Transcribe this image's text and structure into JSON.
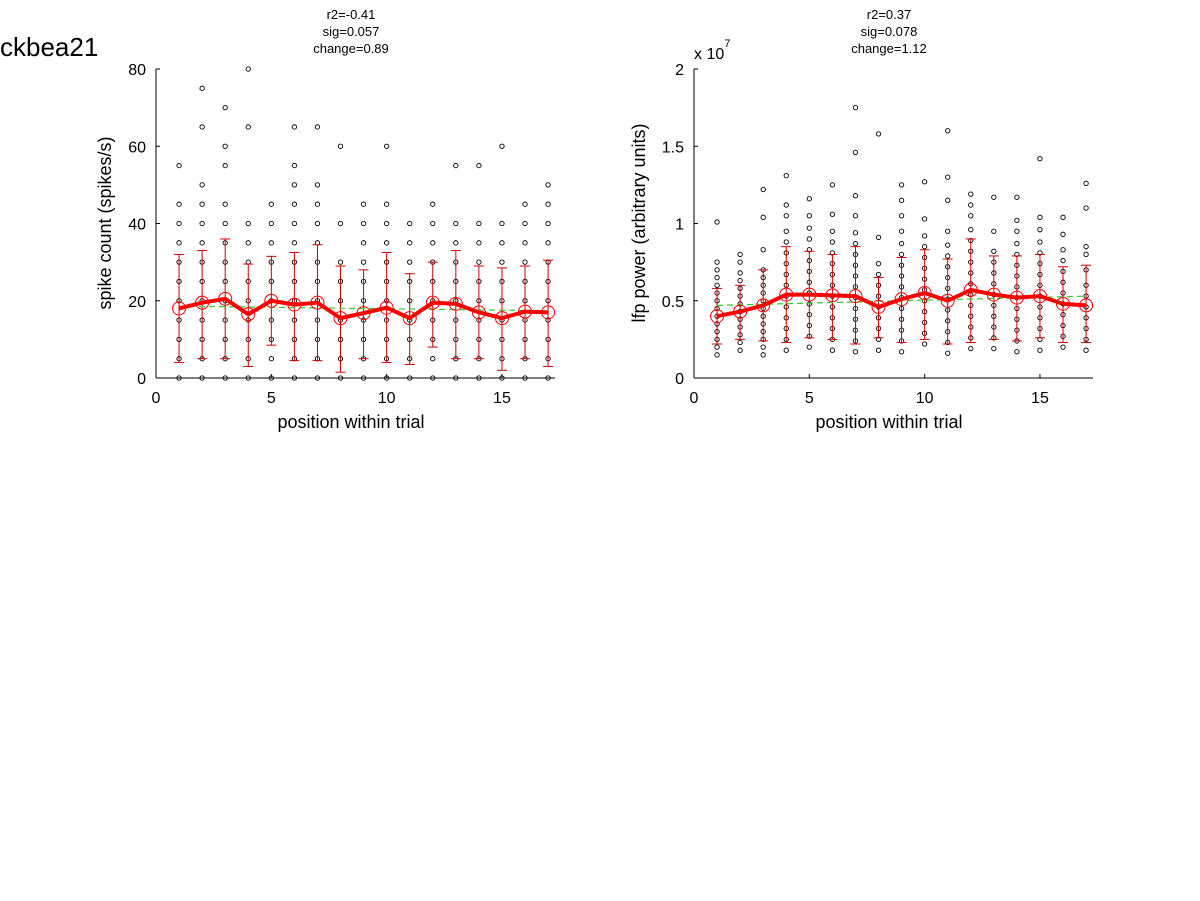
{
  "figure_title": "ckbea21",
  "chart_data": [
    {
      "type": "scatter",
      "stats": [
        "r2=-0.41",
        "sig=0.057",
        "change=0.89"
      ],
      "xlabel": "position within trial",
      "ylabel": "spike count (spikes/s)",
      "xlim": [
        0,
        17.3
      ],
      "ylim": [
        0,
        80
      ],
      "xticks": [
        0,
        5,
        10,
        15
      ],
      "xtick_labels": [
        "0",
        "5",
        "10",
        "15"
      ],
      "yticks": [
        0,
        20,
        40,
        60,
        80
      ],
      "ytick_labels": [
        "0",
        "20",
        "40",
        "60",
        "80"
      ],
      "exponent_label": null,
      "grid": false,
      "legend": null,
      "colors": {
        "points": "#000000",
        "mean": "#ff0000",
        "errorbar": "#cc0000",
        "fit": "#33cc33"
      },
      "x": [
        1,
        2,
        3,
        4,
        5,
        6,
        7,
        8,
        9,
        10,
        11,
        12,
        13,
        14,
        15,
        16,
        17
      ],
      "mean": [
        18,
        19.5,
        20.5,
        16.5,
        20,
        19,
        19.5,
        15.5,
        16.8,
        18.2,
        15.5,
        19.5,
        19.2,
        17,
        15.5,
        17.2,
        17
      ],
      "err_low": [
        4,
        5,
        5,
        3,
        8.5,
        4.5,
        4.5,
        1.5,
        5,
        4,
        3.5,
        8,
        5,
        5,
        2,
        5,
        3
      ],
      "err_high": [
        32,
        33,
        36,
        29.5,
        31.5,
        32.5,
        34.5,
        29,
        28,
        32.5,
        27,
        30,
        33,
        29,
        28.5,
        29,
        30.5
      ],
      "fit": [
        [
          1,
          18.6
        ],
        [
          17,
          17.4
        ]
      ],
      "points": [
        [
          0,
          5,
          10,
          15,
          20,
          25,
          30,
          35,
          40,
          45,
          55
        ],
        [
          0,
          5,
          10,
          15,
          20,
          25,
          30,
          35,
          40,
          45,
          50,
          65,
          75
        ],
        [
          0,
          5,
          10,
          15,
          20,
          25,
          30,
          35,
          40,
          45,
          55,
          60,
          70
        ],
        [
          0,
          5,
          10,
          15,
          20,
          25,
          30,
          35,
          40,
          65,
          80
        ],
        [
          0,
          5,
          10,
          15,
          20,
          25,
          30,
          35,
          40,
          45
        ],
        [
          0,
          5,
          10,
          15,
          20,
          25,
          30,
          35,
          40,
          45,
          50,
          55,
          65
        ],
        [
          0,
          5,
          10,
          15,
          20,
          25,
          30,
          35,
          40,
          45,
          50,
          65
        ],
        [
          0,
          5,
          10,
          15,
          20,
          25,
          30,
          40,
          60
        ],
        [
          0,
          5,
          10,
          15,
          20,
          25,
          30,
          35,
          40,
          45
        ],
        [
          0,
          5,
          10,
          15,
          20,
          25,
          30,
          35,
          40,
          45,
          60
        ],
        [
          0,
          5,
          10,
          15,
          20,
          25,
          30,
          35,
          40
        ],
        [
          0,
          5,
          10,
          15,
          20,
          25,
          30,
          35,
          40,
          45
        ],
        [
          0,
          5,
          10,
          15,
          20,
          25,
          30,
          35,
          40,
          55
        ],
        [
          0,
          5,
          10,
          15,
          20,
          25,
          30,
          35,
          40,
          55
        ],
        [
          0,
          5,
          10,
          15,
          20,
          25,
          30,
          35,
          40,
          60
        ],
        [
          0,
          5,
          10,
          15,
          20,
          25,
          30,
          35,
          40,
          45
        ],
        [
          0,
          5,
          10,
          15,
          20,
          25,
          30,
          35,
          40,
          45,
          50
        ]
      ]
    },
    {
      "type": "scatter",
      "stats": [
        "r2=0.37",
        "sig=0.078",
        "change=1.12"
      ],
      "xlabel": "position within trial",
      "ylabel": "lfp power (arbitrary units)",
      "xlim": [
        0,
        17.3
      ],
      "ylim": [
        0,
        20000000
      ],
      "xticks": [
        0,
        5,
        10,
        15
      ],
      "xtick_labels": [
        "0",
        "5",
        "10",
        "15"
      ],
      "yticks": [
        0,
        5000000,
        10000000,
        15000000,
        20000000
      ],
      "ytick_labels": [
        "0",
        "0.5",
        "1",
        "1.5",
        "2"
      ],
      "exponent_label": {
        "base": "x 10",
        "power": "7"
      },
      "grid": false,
      "legend": null,
      "colors": {
        "points": "#000000",
        "mean": "#ff0000",
        "errorbar": "#cc0000",
        "fit": "#33cc33"
      },
      "x": [
        1,
        2,
        3,
        4,
        5,
        6,
        7,
        8,
        9,
        10,
        11,
        12,
        13,
        14,
        15,
        16,
        17
      ],
      "mean": [
        4000000,
        4300000,
        4700000,
        5400000,
        5400000,
        5350000,
        5300000,
        4600000,
        5100000,
        5500000,
        5000000,
        5700000,
        5400000,
        5200000,
        5300000,
        4800000,
        4700000
      ],
      "err_low": [
        2200000,
        2500000,
        2400000,
        2300000,
        2600000,
        2500000,
        2200000,
        2600000,
        2300000,
        2500000,
        2200000,
        2300000,
        2500000,
        2400000,
        2600000,
        2300000,
        2300000
      ],
      "err_high": [
        5800000,
        6000000,
        7000000,
        8500000,
        8200000,
        8000000,
        8500000,
        6500000,
        7800000,
        8300000,
        7700000,
        9000000,
        7900000,
        7900000,
        8000000,
        7200000,
        7300000
      ],
      "fit": [
        [
          1,
          4700000
        ],
        [
          17,
          5300000
        ]
      ],
      "points": [
        [
          1500000,
          2000000,
          2500000,
          3000000,
          3500000,
          4000000,
          4500000,
          5000000,
          5500000,
          6000000,
          6500000,
          7000000,
          7500000,
          10100000
        ],
        [
          1800000,
          2300000,
          2800000,
          3300000,
          3800000,
          4300000,
          4800000,
          5300000,
          5800000,
          6300000,
          6800000,
          7500000,
          8000000
        ],
        [
          1500000,
          2000000,
          2500000,
          3000000,
          3500000,
          4000000,
          4500000,
          5000000,
          5500000,
          6000000,
          6500000,
          7000000,
          8300000,
          10400000,
          12200000
        ],
        [
          1800000,
          2500000,
          3200000,
          3900000,
          4600000,
          5300000,
          6000000,
          6700000,
          7400000,
          8100000,
          8800000,
          9500000,
          10500000,
          11200000,
          13100000
        ],
        [
          2000000,
          2700000,
          3400000,
          4100000,
          4800000,
          5500000,
          6200000,
          6900000,
          7600000,
          8300000,
          9000000,
          9700000,
          10500000,
          11600000
        ],
        [
          1800000,
          2500000,
          3200000,
          3900000,
          4600000,
          5300000,
          6000000,
          6700000,
          7400000,
          8100000,
          8800000,
          9500000,
          10600000,
          12500000
        ],
        [
          1700000,
          2400000,
          3100000,
          3800000,
          4500000,
          5200000,
          5900000,
          6600000,
          7300000,
          8000000,
          8700000,
          9400000,
          10500000,
          11800000,
          14600000,
          17500000
        ],
        [
          1800000,
          2500000,
          3200000,
          3900000,
          4600000,
          5300000,
          6000000,
          6700000,
          7400000,
          9100000,
          15800000
        ],
        [
          1700000,
          2400000,
          3100000,
          3800000,
          4500000,
          5200000,
          5900000,
          6600000,
          7300000,
          8000000,
          8700000,
          9500000,
          10500000,
          11500000,
          12500000
        ],
        [
          2200000,
          2900000,
          3600000,
          4300000,
          5000000,
          5700000,
          6400000,
          7100000,
          7800000,
          8500000,
          9200000,
          10300000,
          12700000
        ],
        [
          1600000,
          2300000,
          3000000,
          3700000,
          4400000,
          5100000,
          5800000,
          6500000,
          7200000,
          7900000,
          8600000,
          9500000,
          11500000,
          13000000,
          16000000
        ],
        [
          1900000,
          2600000,
          3300000,
          4000000,
          4700000,
          5400000,
          6100000,
          6800000,
          7500000,
          8200000,
          8900000,
          9600000,
          10500000,
          11200000,
          11900000
        ],
        [
          1900000,
          2600000,
          3300000,
          4000000,
          4700000,
          5400000,
          6100000,
          6800000,
          7500000,
          8200000,
          9500000,
          11700000
        ],
        [
          1700000,
          2400000,
          3100000,
          3800000,
          4500000,
          5200000,
          5900000,
          6600000,
          7300000,
          8000000,
          8700000,
          9500000,
          10200000,
          11700000
        ],
        [
          1800000,
          2500000,
          3200000,
          3900000,
          4600000,
          5300000,
          6000000,
          6700000,
          7400000,
          8100000,
          8800000,
          9600000,
          10400000,
          14200000
        ],
        [
          2000000,
          2700000,
          3400000,
          4100000,
          4800000,
          5500000,
          6200000,
          6900000,
          7600000,
          8300000,
          9300000,
          10400000
        ],
        [
          1800000,
          2500000,
          3200000,
          3900000,
          4600000,
          5300000,
          6000000,
          7000000,
          8000000,
          8500000,
          11000000,
          12600000
        ]
      ]
    }
  ]
}
